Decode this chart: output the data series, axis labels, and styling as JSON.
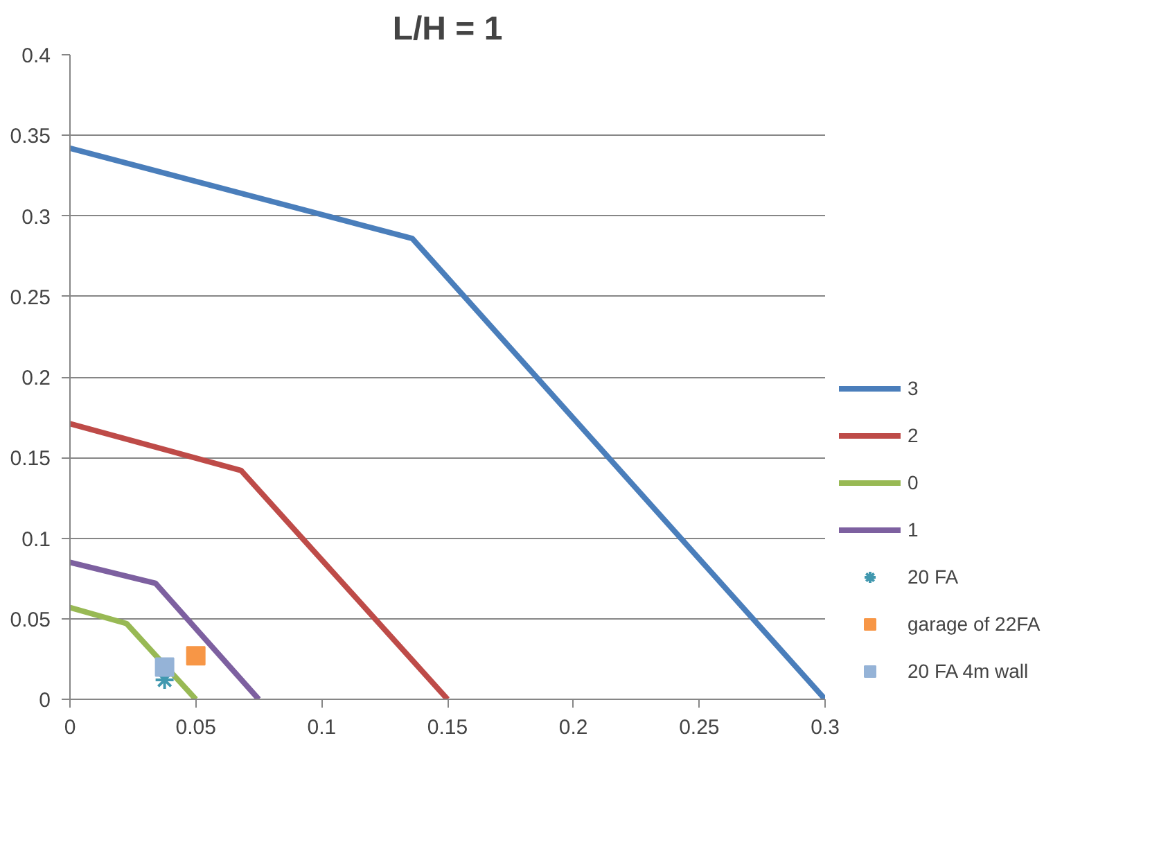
{
  "chart_data": {
    "type": "line",
    "title": "L/H = 1",
    "xlim": [
      0,
      0.3
    ],
    "xticks": [
      0,
      0.05,
      0.1,
      0.15,
      0.2,
      0.25,
      0.3
    ],
    "ylim": [
      0,
      0.4
    ],
    "yticks": [
      0,
      0.05,
      0.1,
      0.15,
      0.2,
      0.25,
      0.3,
      0.35,
      0.4
    ],
    "grid": "y",
    "legend": "right",
    "marker": "none",
    "line_style": "solid",
    "series": [
      {
        "name": "3",
        "color": "#4a7ebb",
        "x": [
          0,
          0.136,
          0.3
        ],
        "values": [
          0.342,
          0.286,
          0
        ]
      },
      {
        "name": "2",
        "color": "#be4b48",
        "x": [
          0,
          0.068,
          0.15
        ],
        "values": [
          0.171,
          0.142,
          0
        ]
      },
      {
        "name": "0",
        "color": "#98b954",
        "x": [
          0,
          0.0225,
          0.05
        ],
        "values": [
          0.057,
          0.047,
          0
        ]
      },
      {
        "name": "1",
        "color": "#7d60a0",
        "x": [
          0,
          0.034,
          0.075
        ],
        "values": [
          0.085,
          0.072,
          0
        ]
      },
      {
        "name": "20 FA",
        "type": "scatter",
        "marker": "cross",
        "color": "#4198af",
        "x": [
          0.0376
        ],
        "values": [
          0.012
        ]
      },
      {
        "name": "garage of 22FA",
        "type": "scatter",
        "marker": "square",
        "color": "#f79646",
        "x": [
          0.05
        ],
        "values": [
          0.027
        ]
      },
      {
        "name": "20 FA 4m wall",
        "type": "scatter",
        "marker": "square",
        "color": "#95b3d7",
        "x": [
          0.0376
        ],
        "values": [
          0.02
        ]
      }
    ]
  }
}
